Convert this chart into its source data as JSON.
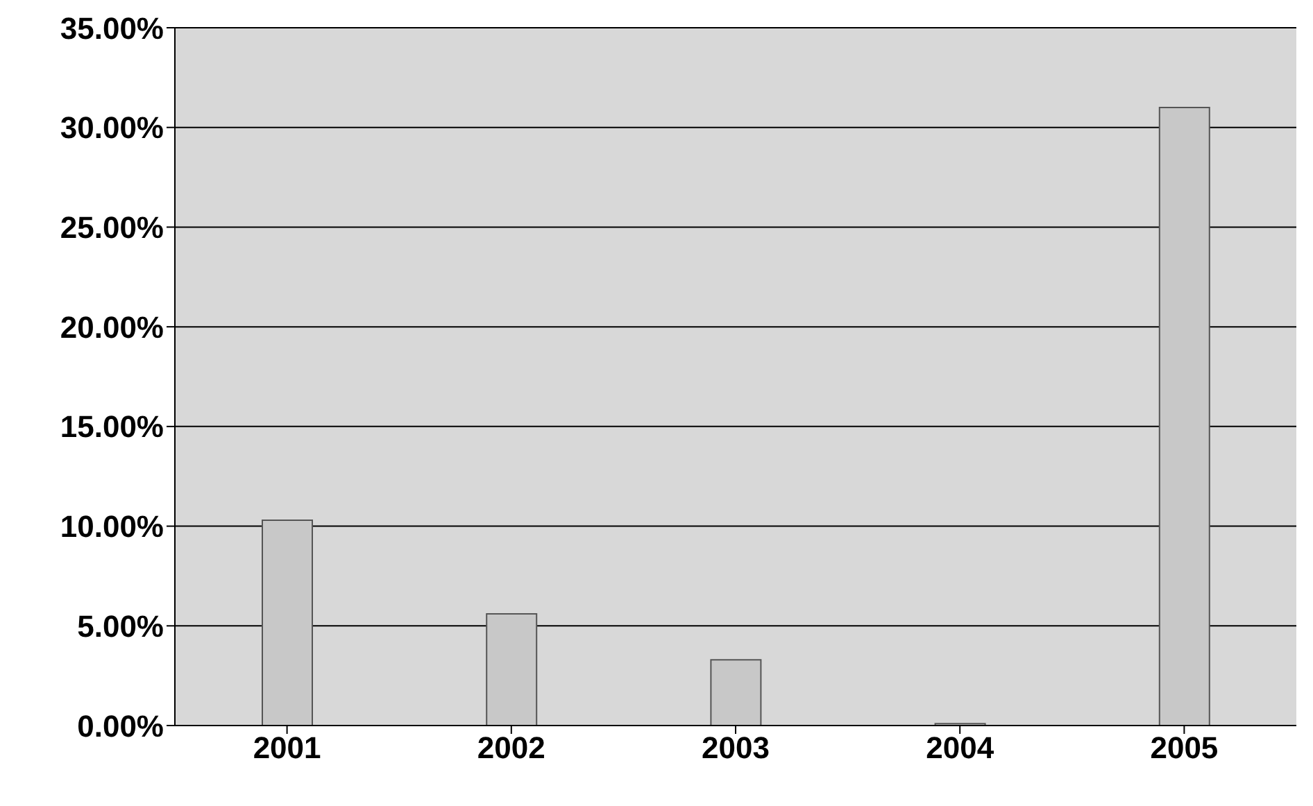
{
  "chart_data": {
    "type": "bar",
    "categories": [
      "2001",
      "2002",
      "2003",
      "2004",
      "2005"
    ],
    "values": [
      0.103,
      0.056,
      0.033,
      0.001,
      0.31
    ],
    "color": "#c8c8c8",
    "ylim": [
      0,
      0.35
    ],
    "yticks": [
      {
        "value": 0,
        "label": "0.00%"
      },
      {
        "value": 0.05,
        "label": "5.00%"
      },
      {
        "value": 0.1,
        "label": "10.00%"
      },
      {
        "value": 0.15,
        "label": "15.00%"
      },
      {
        "value": 0.2,
        "label": "20.00%"
      },
      {
        "value": 0.25,
        "label": "25.00%"
      },
      {
        "value": 0.3,
        "label": "30.00%"
      },
      {
        "value": 0.35,
        "label": "35.00%"
      }
    ],
    "grid": "y"
  }
}
